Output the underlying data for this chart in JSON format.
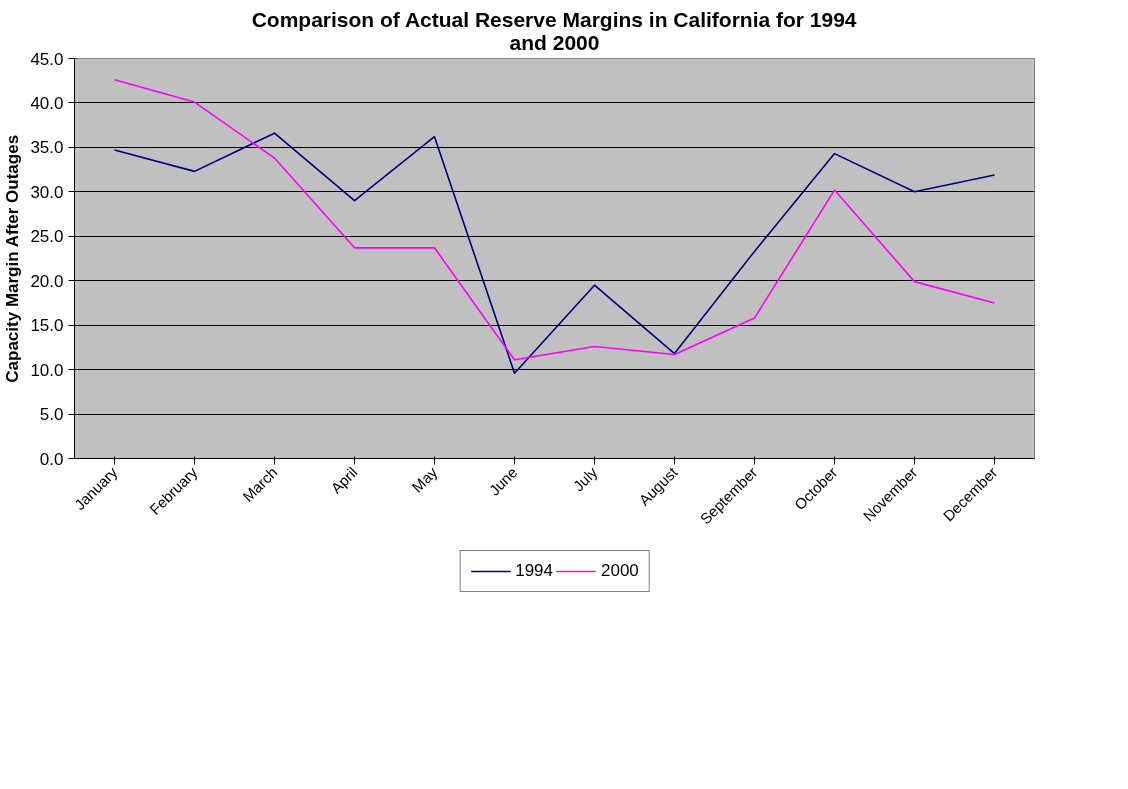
{
  "chart_data": {
    "type": "line",
    "title": "Comparison of Actual Reserve Margins in California for 1994 and 2000",
    "ylabel": "Capacity Margin After Outages",
    "categories": [
      "January",
      "February",
      "March",
      "April",
      "May",
      "June",
      "July",
      "August",
      "September",
      "October",
      "November",
      "December"
    ],
    "series": [
      {
        "name": "1994",
        "color": "#000080",
        "values": [
          34.7,
          32.3,
          36.6,
          29.0,
          36.2,
          9.6,
          19.5,
          11.8,
          23.3,
          34.3,
          30.0,
          31.9
        ]
      },
      {
        "name": "2000",
        "color": "#ff00ff",
        "values": [
          42.6,
          40.1,
          33.8,
          23.7,
          23.7,
          11.1,
          12.6,
          11.7,
          15.8,
          30.2,
          19.9,
          17.5
        ]
      }
    ],
    "ylim": [
      0,
      45
    ],
    "yticks": [
      {
        "value": 0,
        "label": "0.0"
      },
      {
        "value": 5,
        "label": "5.0"
      },
      {
        "value": 10,
        "label": "10.0"
      },
      {
        "value": 15,
        "label": "15.0"
      },
      {
        "value": 20,
        "label": "20.0"
      },
      {
        "value": 25,
        "label": "25.0"
      },
      {
        "value": 30,
        "label": "30.0"
      },
      {
        "value": 35,
        "label": "35.0"
      },
      {
        "value": 40,
        "label": "40.0"
      },
      {
        "value": 45,
        "label": "45.0"
      }
    ],
    "grid": "y",
    "legend": "bottom",
    "marker": "none",
    "line_style": "solid"
  }
}
